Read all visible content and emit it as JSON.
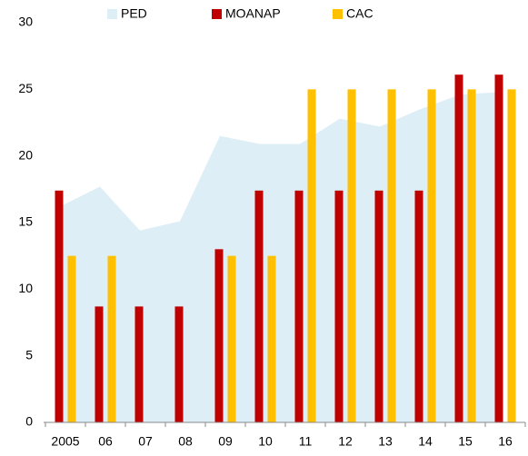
{
  "chart_data": {
    "type": "bar",
    "categories": [
      "2005",
      "06",
      "07",
      "08",
      "09",
      "10",
      "11",
      "12",
      "13",
      "14",
      "15",
      "16"
    ],
    "series": [
      {
        "name": "PED",
        "type": "area",
        "color": "#ddeef6",
        "values": [
          16.2,
          17.7,
          14.4,
          15.1,
          21.5,
          20.9,
          20.9,
          22.8,
          22.2,
          23.5,
          24.6,
          24.8
        ]
      },
      {
        "name": "MOANAP",
        "type": "bar",
        "color": "#c00000",
        "values": [
          17.4,
          8.7,
          8.7,
          8.7,
          13.0,
          17.4,
          17.4,
          17.4,
          17.4,
          17.4,
          26.1,
          26.1
        ]
      },
      {
        "name": "CAC",
        "type": "bar",
        "color": "#ffc000",
        "values": [
          12.5,
          12.5,
          null,
          null,
          12.5,
          12.5,
          25,
          25,
          25,
          25,
          25,
          25
        ]
      }
    ],
    "ylim": [
      0,
      30
    ],
    "yticks": [
      0,
      5,
      10,
      15,
      20,
      25,
      30
    ],
    "legend": "top"
  }
}
